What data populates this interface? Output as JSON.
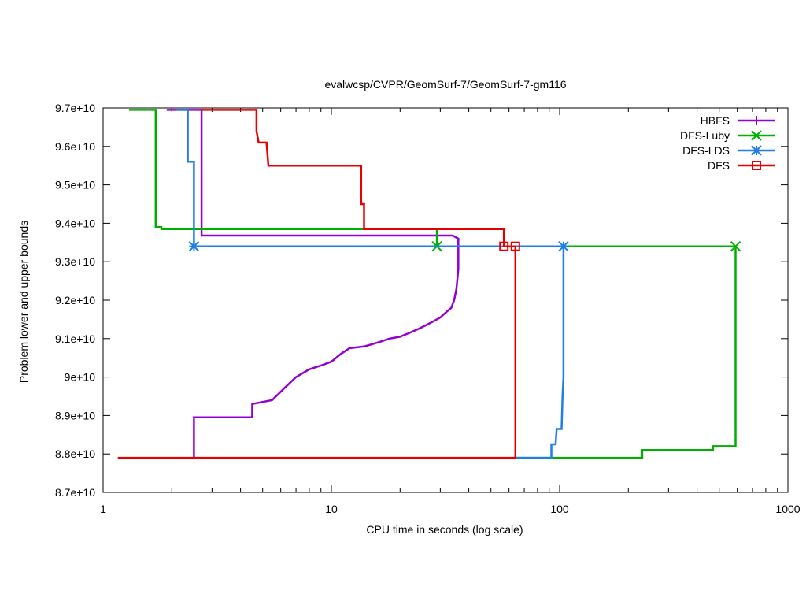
{
  "chart_data": {
    "type": "line",
    "title": "evalwcsp/CVPR/GeomSurf-7/GeomSurf-7-gm116",
    "xlabel": "CPU time in seconds (log scale)",
    "ylabel": "Problem lower and upper bounds",
    "x_scale": "log",
    "xlim": [
      1,
      1000
    ],
    "ylim": [
      87000000000,
      97000000000
    ],
    "x_ticks": [
      1,
      10,
      100,
      1000
    ],
    "x_tick_labels": [
      "1",
      "10",
      "100",
      "1000"
    ],
    "y_ticks": [
      87000000000,
      88000000000,
      89000000000,
      90000000000,
      91000000000,
      92000000000,
      93000000000,
      94000000000,
      95000000000,
      96000000000,
      97000000000
    ],
    "y_tick_labels": [
      "8.7e+10",
      "8.8e+10",
      "8.9e+10",
      "9e+10",
      "9.1e+10",
      "9.2e+10",
      "9.3e+10",
      "9.4e+10",
      "9.5e+10",
      "9.6e+10",
      "9.7e+10"
    ],
    "legend_position": "top-right",
    "series": [
      {
        "name": "HBFS",
        "color": "#9400d3",
        "marker": "plus",
        "lines": [
          [
            [
              1.9,
              96950000000
            ],
            [
              2.7,
              96950000000
            ],
            [
              2.7,
              93680000000
            ],
            [
              34,
              93680000000
            ],
            [
              36,
              93600000000
            ],
            [
              36,
              92800000000
            ],
            [
              35.3,
              92300000000
            ],
            [
              34.5,
              92000000000
            ],
            [
              33.5,
              91800000000
            ],
            [
              32,
              91700000000
            ],
            [
              30,
              91550000000
            ],
            [
              28,
              91450000000
            ],
            [
              26,
              91350000000
            ],
            [
              24,
              91250000000
            ],
            [
              22,
              91150000000
            ],
            [
              20,
              91050000000
            ],
            [
              18,
              91000000000
            ],
            [
              16,
              90900000000
            ],
            [
              14,
              90800000000
            ],
            [
              12,
              90750000000
            ],
            [
              11,
              90600000000
            ],
            [
              10,
              90400000000
            ],
            [
              9,
              90300000000
            ],
            [
              8,
              90200000000
            ],
            [
              7,
              90000000000
            ],
            [
              6.2,
              89700000000
            ],
            [
              5.5,
              89400000000
            ],
            [
              4.5,
              89300000000
            ],
            [
              4.5,
              88950000000
            ],
            [
              2.5,
              88950000000
            ],
            [
              2.5,
              87900000000
            ]
          ]
        ],
        "markers": []
      },
      {
        "name": "DFS-Luby",
        "color": "#00b000",
        "marker": "x",
        "lines": [
          [
            [
              1.3,
              96950000000
            ],
            [
              1.7,
              96950000000
            ],
            [
              1.7,
              93900000000
            ],
            [
              1.8,
              93900000000
            ],
            [
              1.8,
              93850000000
            ],
            [
              29,
              93850000000
            ],
            [
              29,
              93400000000
            ],
            [
              590,
              93400000000
            ],
            [
              590,
              88200000000
            ],
            [
              470,
              88200000000
            ],
            [
              470,
              88100000000
            ],
            [
              230,
              88100000000
            ],
            [
              230,
              87900000000
            ],
            [
              64,
              87900000000
            ]
          ]
        ],
        "markers": [
          [
            29,
            93400000000
          ],
          [
            590,
            93400000000
          ]
        ]
      },
      {
        "name": "DFS-LDS",
        "color": "#1e7fe6",
        "marker": "star",
        "lines": [
          [
            [
              2.1,
              96950000000
            ],
            [
              2.35,
              96950000000
            ],
            [
              2.35,
              95600000000
            ],
            [
              2.5,
              95600000000
            ],
            [
              2.5,
              93400000000
            ],
            [
              104,
              93400000000
            ],
            [
              104,
              90000000000
            ],
            [
              103,
              89500000000
            ],
            [
              102,
              88650000000
            ],
            [
              97,
              88650000000
            ],
            [
              96,
              88250000000
            ],
            [
              92,
              88250000000
            ],
            [
              92,
              87900000000
            ],
            [
              64,
              87900000000
            ]
          ]
        ],
        "markers": [
          [
            2.5,
            93400000000
          ],
          [
            104,
            93400000000
          ]
        ]
      },
      {
        "name": "DFS",
        "color": "#e60000",
        "marker": "square",
        "lines": [
          [
            [
              2.7,
              96950000000
            ],
            [
              4.7,
              96950000000
            ],
            [
              4.7,
              96400000000
            ],
            [
              4.8,
              96100000000
            ],
            [
              5.2,
              96100000000
            ],
            [
              5.3,
              95500000000
            ],
            [
              13.5,
              95500000000
            ],
            [
              13.5,
              94500000000
            ],
            [
              13.9,
              94500000000
            ],
            [
              13.9,
              93850000000
            ],
            [
              29,
              93850000000
            ],
            [
              57,
              93850000000
            ],
            [
              57,
              93400000000
            ],
            [
              64,
              93400000000
            ],
            [
              64,
              87900000000
            ],
            [
              1.16,
              87900000000
            ]
          ]
        ],
        "markers": [
          [
            57,
            93400000000
          ],
          [
            64,
            93400000000
          ]
        ]
      }
    ]
  }
}
